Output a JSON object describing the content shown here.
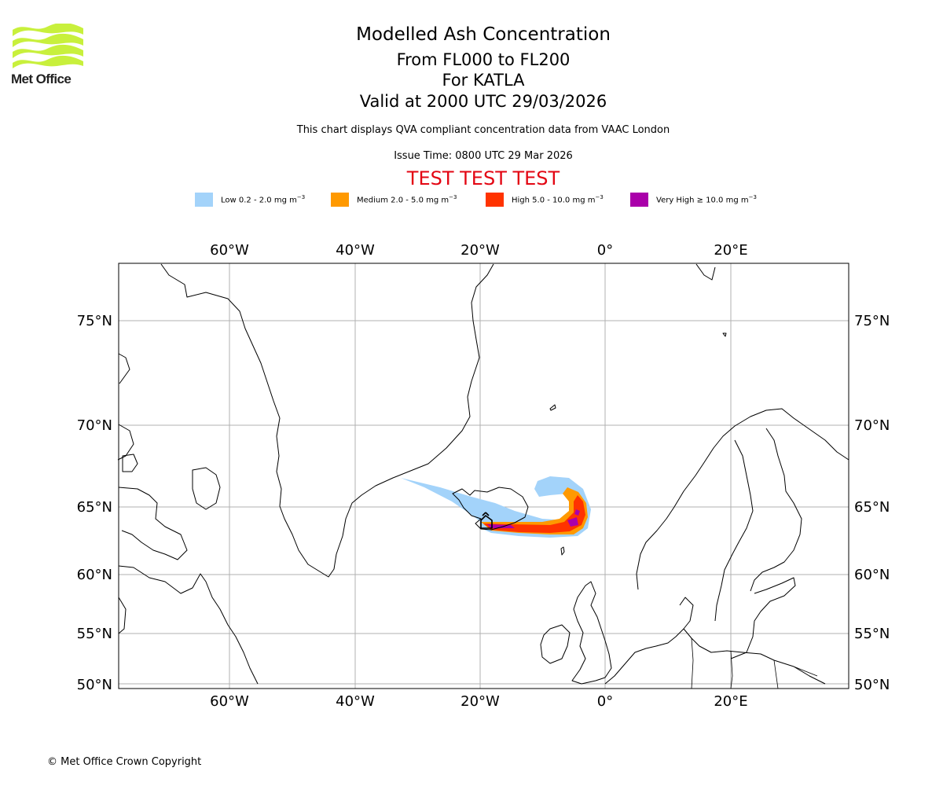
{
  "logo": {
    "text": "Met Office",
    "color": "#c8f03c"
  },
  "title": {
    "main": "Modelled Ash Concentration",
    "levels": "From FL000 to FL200",
    "volcano": "For KATLA",
    "valid": "Valid at 2000 UTC 29/03/2026",
    "note": "This chart displays QVA compliant concentration data from VAAC London",
    "issue": "Issue Time: 0800 UTC 29 Mar 2026",
    "test": "TEST TEST TEST"
  },
  "legend": [
    {
      "label": "Low 0.2 - 2.0 mg m",
      "color": "#a3d3fa"
    },
    {
      "label": "Medium 2.0 - 5.0 mg m",
      "color": "#ff9900"
    },
    {
      "label": "High 5.0 - 10.0 mg m",
      "color": "#ff3300"
    },
    {
      "label": "Very High ≥ 10.0 mg m",
      "color": "#aa00aa"
    }
  ],
  "legend_unit_exp": "−3",
  "map": {
    "lon_ticks": [
      "60°W",
      "40°W",
      "20°W",
      "0°",
      "20°E"
    ],
    "lat_ticks": [
      "75°N",
      "70°N",
      "65°N",
      "60°N",
      "55°N",
      "50°N"
    ],
    "extent": {
      "lon_min": -78,
      "lon_max": 38,
      "lat_min": 50,
      "lat_max": 77
    },
    "grid": true,
    "grid_color": "#b0b0b0"
  },
  "copyright": "© Met Office Crown Copyright"
}
